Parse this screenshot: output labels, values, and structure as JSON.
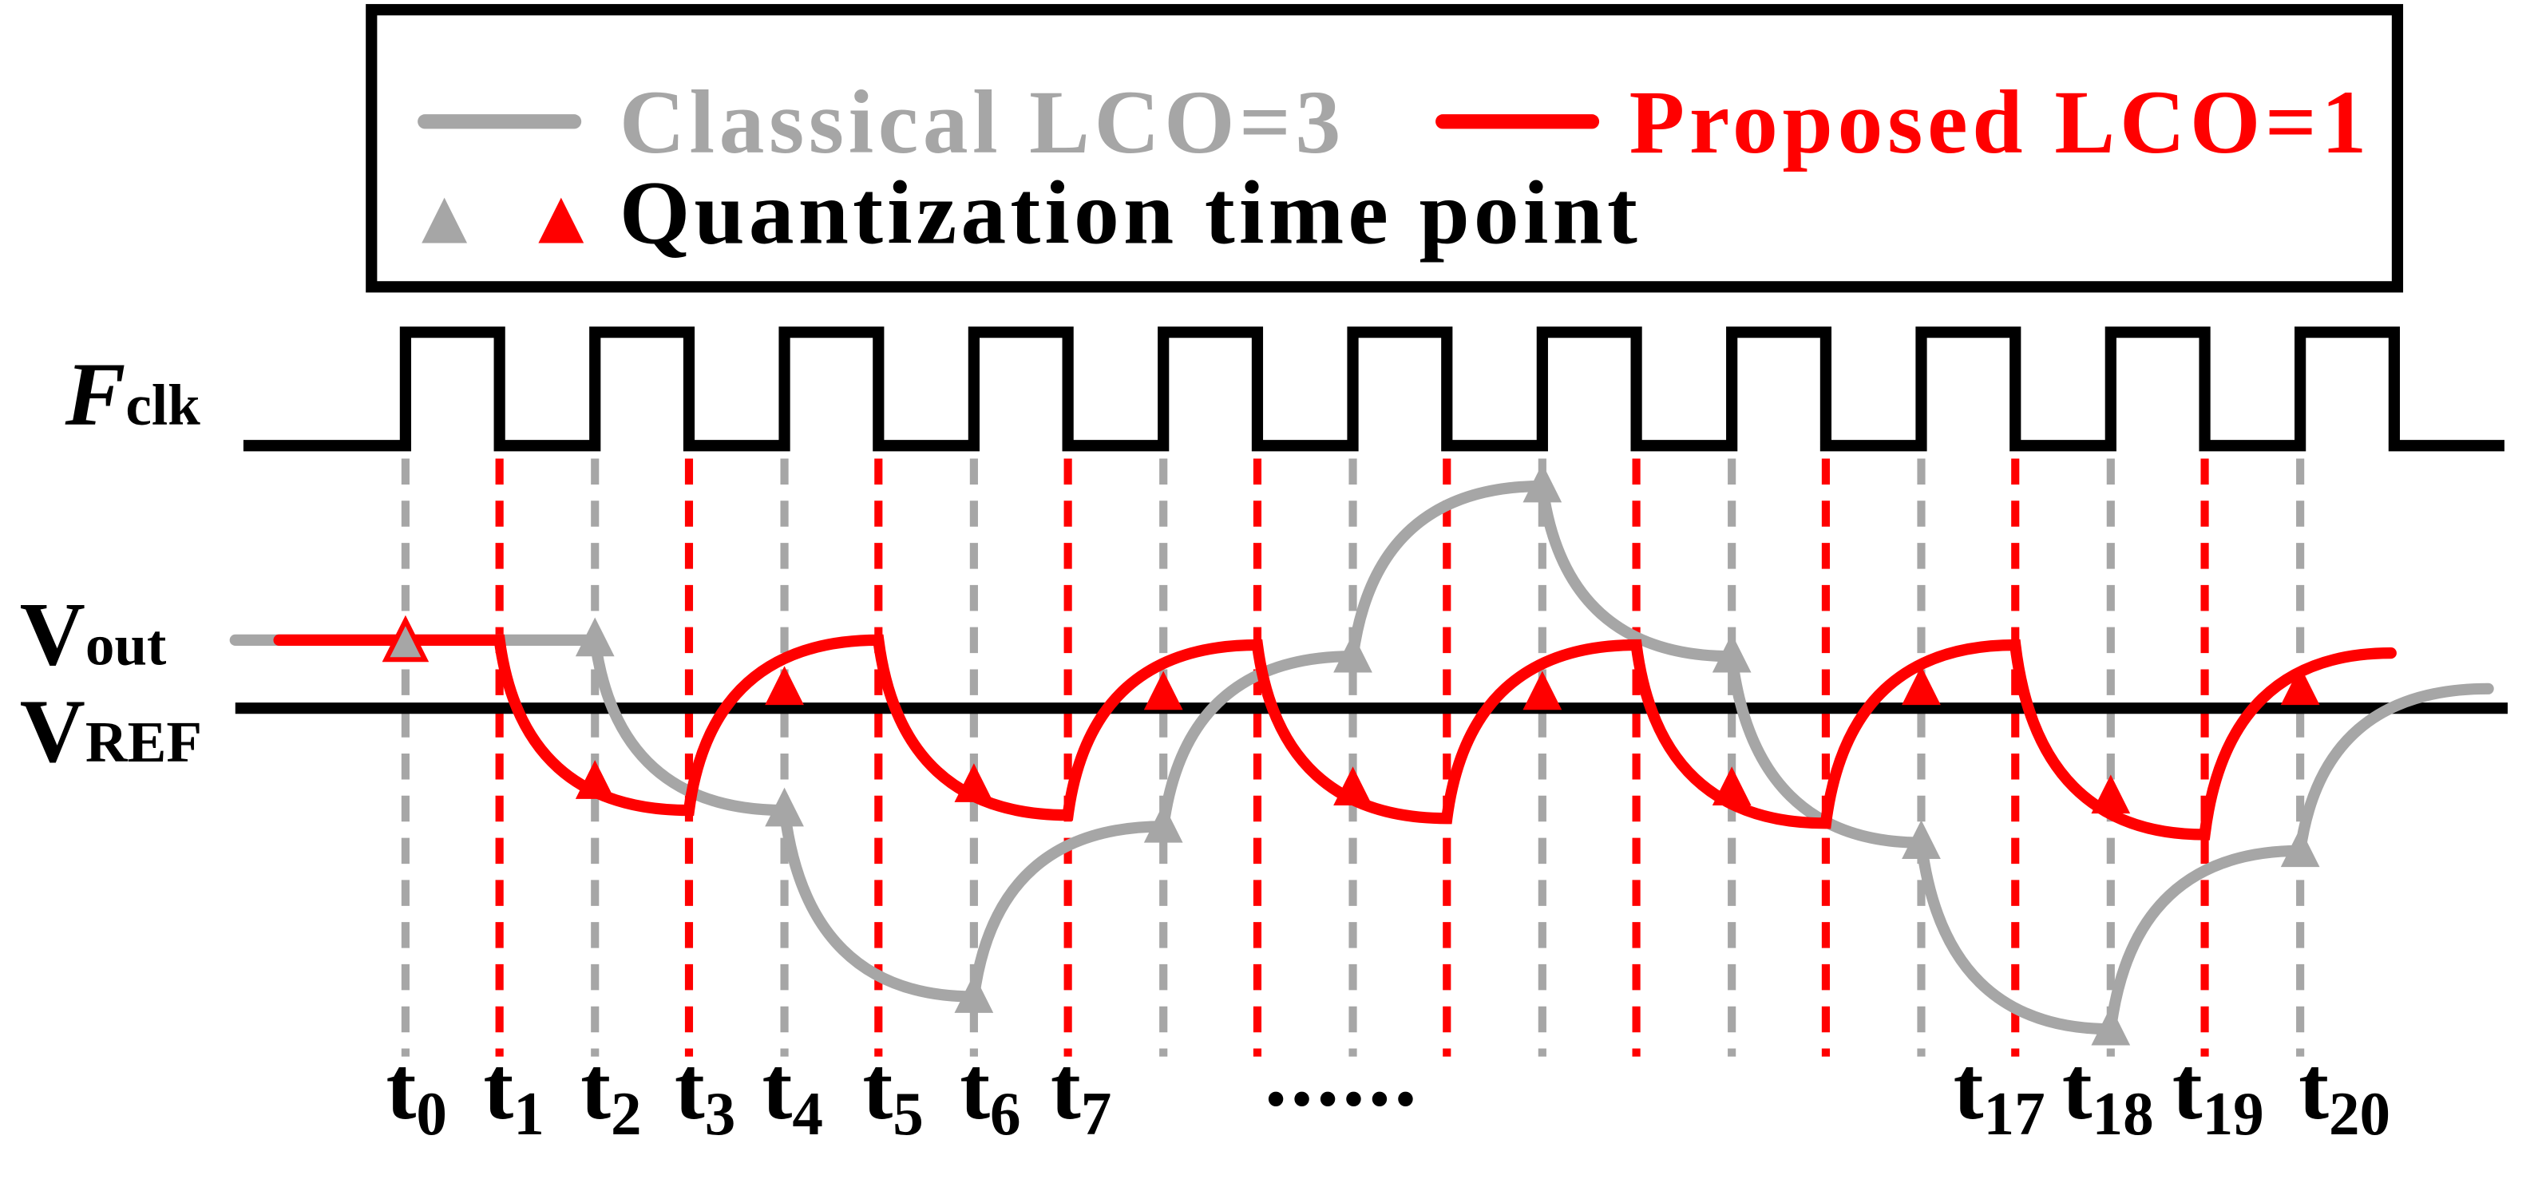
{
  "legend": {
    "classical_label": "Classical LCO=3",
    "proposed_label": "Proposed LCO=1",
    "quantization_label": "Quantization time point",
    "marker_icon": "triangle"
  },
  "signals": {
    "clock_label_main": "F",
    "clock_label_sub": "clk",
    "vout_main": "V",
    "vout_sub": "out",
    "vref_main": "V",
    "vref_sub": "REF"
  },
  "time_labels": [
    {
      "main": "t",
      "sub": "0"
    },
    {
      "main": "t",
      "sub": "1"
    },
    {
      "main": "t",
      "sub": "2"
    },
    {
      "main": "t",
      "sub": "3"
    },
    {
      "main": "t",
      "sub": "4"
    },
    {
      "main": "t",
      "sub": "5"
    },
    {
      "main": "t",
      "sub": "6"
    },
    {
      "main": "t",
      "sub": "7"
    },
    {
      "main": "t",
      "sub": "17"
    },
    {
      "main": "t",
      "sub": "18"
    },
    {
      "main": "t",
      "sub": "19"
    },
    {
      "main": "t",
      "sub": "20"
    }
  ],
  "ellipsis": "......",
  "colors": {
    "classical": "#a6a6a6",
    "proposed": "#ff0000",
    "clock": "#000000"
  }
}
